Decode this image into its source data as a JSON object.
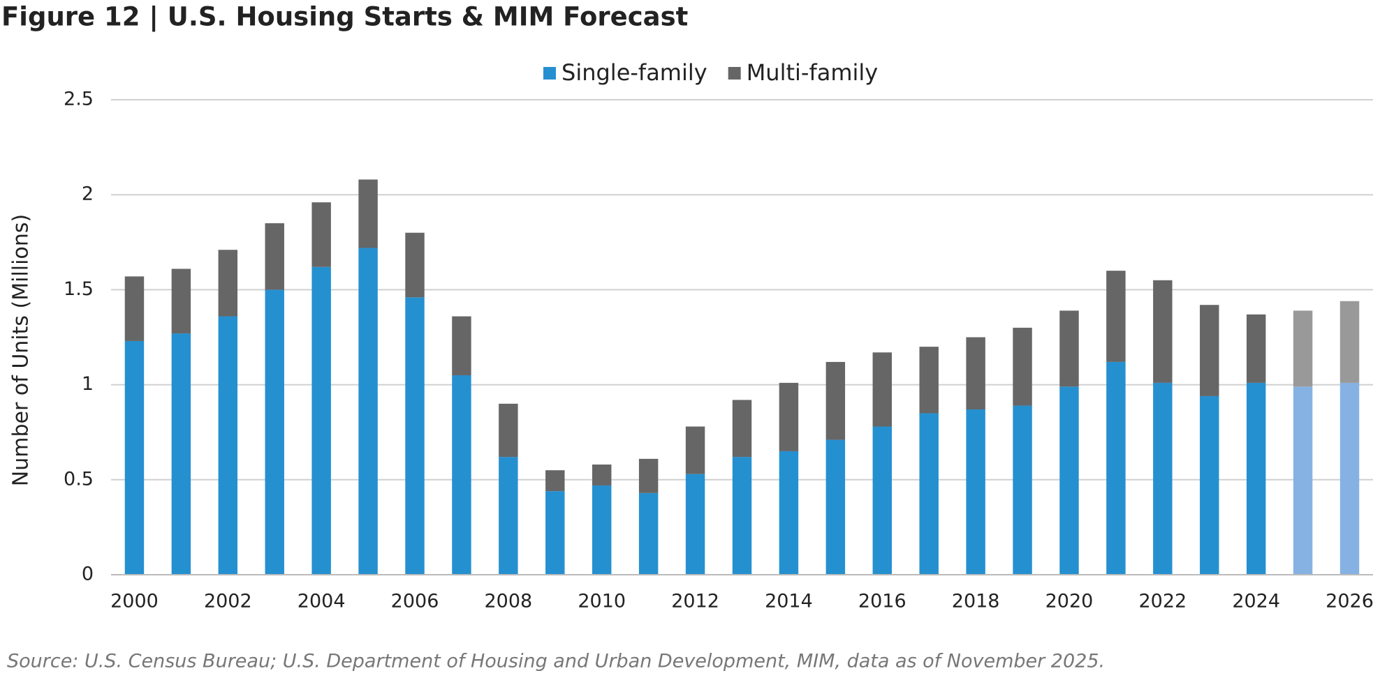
{
  "chart_data": {
    "type": "stacked_bar",
    "title": "Figure 12 | U.S. Housing Starts & MIM Forecast",
    "y_label": "Number of Units (Millions)",
    "source": "Source: U.S. Census Bureau; U.S. Department of Housing and Urban Development, MIM, data as of November 2025.",
    "categories": [
      "2000",
      null,
      "2002",
      null,
      "2004",
      null,
      "2006",
      null,
      "2008",
      null,
      "2010",
      null,
      "2012",
      null,
      "2014",
      null,
      "2016",
      null,
      "2018",
      null,
      "2020",
      null,
      "2022",
      null,
      "2024",
      null,
      "2026"
    ],
    "series": [
      {
        "name": "Single-family",
        "color": "#2590d0",
        "colors": [
          "#2590d0",
          "#2590d0",
          "#2590d0",
          "#2590d0",
          "#2590d0",
          "#2590d0",
          "#2590d0",
          "#2590d0",
          "#2590d0",
          "#2590d0",
          "#2590d0",
          "#2590d0",
          "#2590d0",
          "#2590d0",
          "#2590d0",
          "#2590d0",
          "#2590d0",
          "#2590d0",
          "#2590d0",
          "#2590d0",
          "#2590d0",
          "#2590d0",
          "#2590d0",
          "#2590d0",
          "#2590d0",
          "#86b2e3",
          "#86b2e3"
        ],
        "values": [
          1.23,
          1.27,
          1.36,
          1.5,
          1.62,
          1.72,
          1.46,
          1.05,
          0.62,
          0.44,
          0.47,
          0.43,
          0.53,
          0.62,
          0.65,
          0.71,
          0.78,
          0.85,
          0.87,
          0.89,
          0.99,
          1.12,
          1.01,
          0.94,
          1.01,
          0.99,
          1.01
        ]
      },
      {
        "name": "Multi-family",
        "color": "#666666",
        "colors": [
          "#666666",
          "#666666",
          "#666666",
          "#666666",
          "#666666",
          "#666666",
          "#666666",
          "#666666",
          "#666666",
          "#666666",
          "#666666",
          "#666666",
          "#666666",
          "#666666",
          "#666666",
          "#666666",
          "#666666",
          "#666666",
          "#666666",
          "#666666",
          "#666666",
          "#666666",
          "#666666",
          "#666666",
          "#666666",
          "#999999",
          "#999999"
        ],
        "values": [
          0.34,
          0.34,
          0.35,
          0.35,
          0.34,
          0.36,
          0.34,
          0.31,
          0.28,
          0.11,
          0.11,
          0.18,
          0.25,
          0.3,
          0.36,
          0.41,
          0.39,
          0.35,
          0.38,
          0.41,
          0.4,
          0.48,
          0.54,
          0.48,
          0.36,
          0.4,
          0.43
        ]
      }
    ],
    "ylim": [
      0,
      2.5
    ],
    "yticks": [
      0,
      0.5,
      1,
      1.5,
      2,
      2.5
    ],
    "grid": true,
    "legend": "top"
  }
}
